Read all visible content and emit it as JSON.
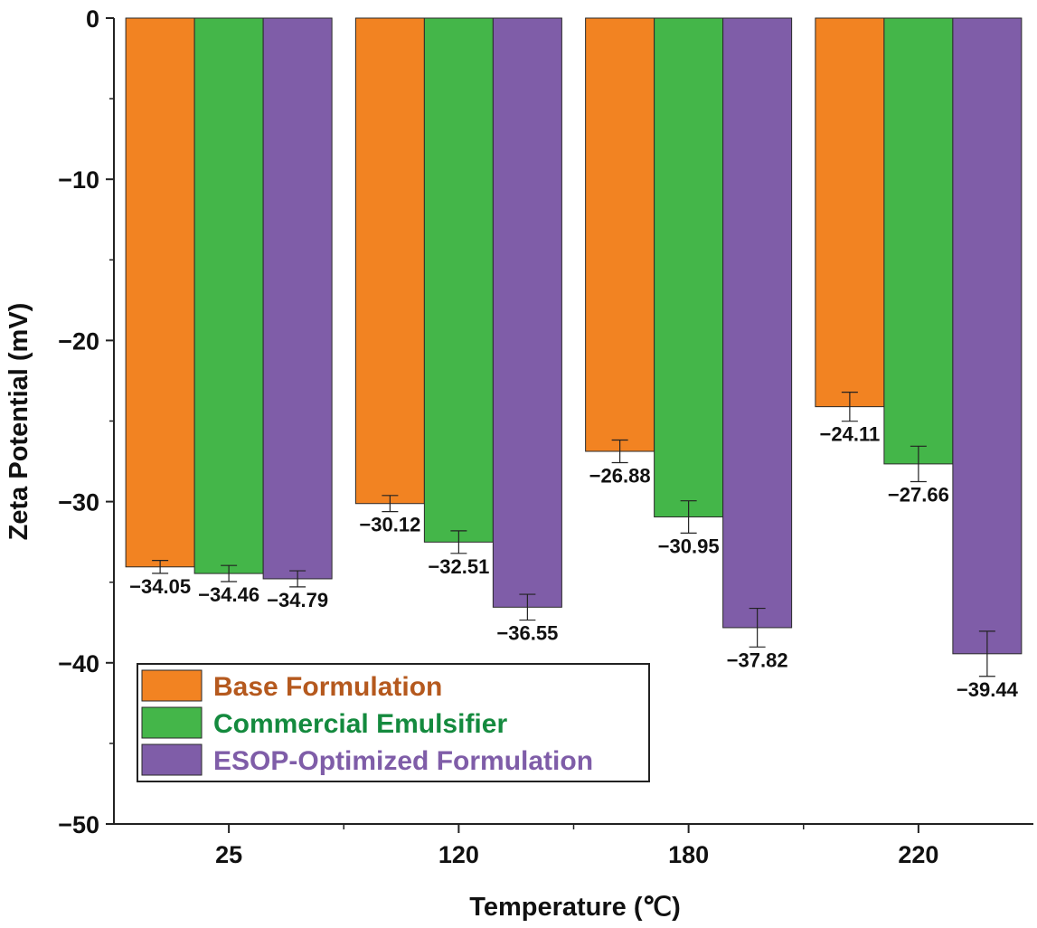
{
  "chart_data": {
    "type": "bar",
    "title": "",
    "xlabel": "Temperature (℃)",
    "ylabel": "Zeta Potential (mV)",
    "categories": [
      "25",
      "120",
      "180",
      "220"
    ],
    "ylim": [
      -50,
      0
    ],
    "yticks": [
      0,
      -10,
      -20,
      -30,
      -40,
      -50
    ],
    "ytick_labels": [
      "0",
      "−10",
      "−20",
      "−30",
      "−40",
      "−50"
    ],
    "grid": false,
    "legend_position": "bottom-left",
    "series": [
      {
        "name": "Base Formulation",
        "color": "#F28322",
        "text_color": "#B5591E",
        "values": [
          -34.05,
          -30.12,
          -26.88,
          -24.11
        ],
        "errors": [
          0.4,
          0.5,
          0.7,
          0.9
        ],
        "labels": [
          "−34.05",
          "−30.12",
          "−26.88",
          "−24.11"
        ]
      },
      {
        "name": "Commercial Emulsifier",
        "color": "#44B649",
        "text_color": "#148A3E",
        "values": [
          -34.46,
          -32.51,
          -30.95,
          -27.66
        ],
        "errors": [
          0.5,
          0.7,
          1.0,
          1.1
        ],
        "labels": [
          "−34.46",
          "−32.51",
          "−30.95",
          "−27.66"
        ]
      },
      {
        "name": "ESOP-Optimized Formulation",
        "color": "#7F5DA8",
        "text_color": "#7F5DA8",
        "values": [
          -34.79,
          -36.55,
          -37.82,
          -39.44
        ],
        "errors": [
          0.5,
          0.8,
          1.2,
          1.4
        ],
        "labels": [
          "−34.79",
          "−36.55",
          "−37.82",
          "−39.44"
        ]
      }
    ]
  }
}
